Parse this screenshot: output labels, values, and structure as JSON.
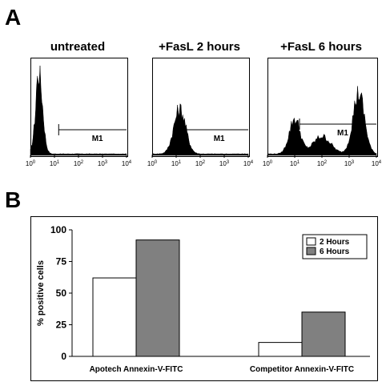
{
  "panel_labels": {
    "a": "A",
    "b": "B"
  },
  "chart_data": [
    {
      "type": "histogram",
      "title": "untreated",
      "xaxis": {
        "scale": "log",
        "range": [
          1,
          10000
        ],
        "tick_exponents": [
          0,
          1,
          2,
          3,
          4
        ]
      },
      "marker": {
        "label": "M1",
        "from": 15,
        "to": 10000
      },
      "color": "#000000"
    },
    {
      "type": "histogram",
      "title": "+FasL 2 hours",
      "xaxis": {
        "scale": "log",
        "range": [
          1,
          10000
        ],
        "tick_exponents": [
          0,
          1,
          2,
          3,
          4
        ]
      },
      "marker": {
        "label": "M1",
        "from": 15,
        "to": 10000
      },
      "color": "#000000"
    },
    {
      "type": "histogram",
      "title": "+FasL 6 hours",
      "xaxis": {
        "scale": "log",
        "range": [
          1,
          10000
        ],
        "tick_exponents": [
          0,
          1,
          2,
          3,
          4
        ]
      },
      "marker": {
        "label": "M1",
        "from": 15,
        "to": 10000
      },
      "color": "#000000"
    },
    {
      "type": "bar",
      "title": "",
      "categories": [
        "Apotech Annexin-V-FITC",
        "Competitor Annexin-V-FITC"
      ],
      "series": [
        {
          "name": "2 Hours",
          "values": [
            62,
            11
          ],
          "color": "#ffffff"
        },
        {
          "name": "6 Hours",
          "values": [
            92,
            35
          ],
          "color": "#808080"
        }
      ],
      "xlabel": "",
      "ylabel": "% positive cells",
      "ylim": [
        0,
        100
      ],
      "yticks": [
        0,
        25,
        50,
        75,
        100
      ],
      "legend": "top-right",
      "grid": false
    }
  ]
}
